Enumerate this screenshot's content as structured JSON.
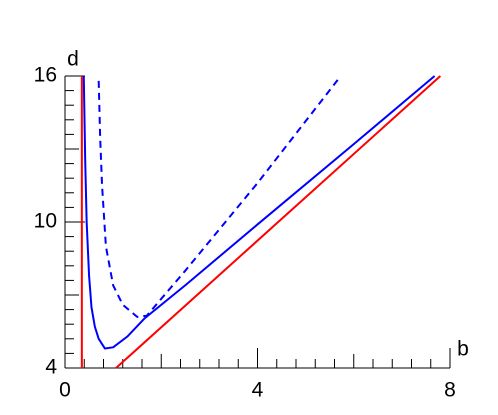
{
  "chart_data": {
    "type": "line",
    "x_label": "b",
    "y_label": "d",
    "xlim": [
      0,
      8
    ],
    "ylim": [
      4,
      16
    ],
    "xticks": [
      0,
      4,
      8
    ],
    "yticks": [
      4,
      10,
      16
    ],
    "series": [
      {
        "color": "#ff0000",
        "dash": false,
        "x": [
          0.35,
          0.35
        ],
        "values": [
          4,
          16
        ]
      },
      {
        "color": "#ff0000",
        "dash": false,
        "x": [
          1.06,
          7.8
        ],
        "values": [
          4,
          16
        ]
      },
      {
        "color": "#0000ff",
        "dash": false,
        "x": [
          0.39,
          0.42,
          0.45,
          0.5,
          0.55,
          0.62,
          0.7,
          0.83,
          1.0,
          1.3,
          1.66,
          2.5,
          4,
          6,
          7.68
        ],
        "values": [
          16,
          12.5,
          10,
          7.8,
          6.5,
          5.7,
          5.2,
          4.8,
          4.85,
          5.3,
          6.05,
          7.4,
          9.9,
          13.2,
          16
        ]
      },
      {
        "color": "#0000ff",
        "dash": true,
        "x": [
          0.7,
          0.73,
          0.77,
          0.85,
          1.0,
          1.2,
          1.5,
          1.7,
          2.5,
          4,
          5.73
        ],
        "values": [
          15.8,
          13.5,
          11.5,
          9,
          7.4,
          6.6,
          6.1,
          6.15,
          8,
          11.6,
          16
        ]
      }
    ]
  }
}
